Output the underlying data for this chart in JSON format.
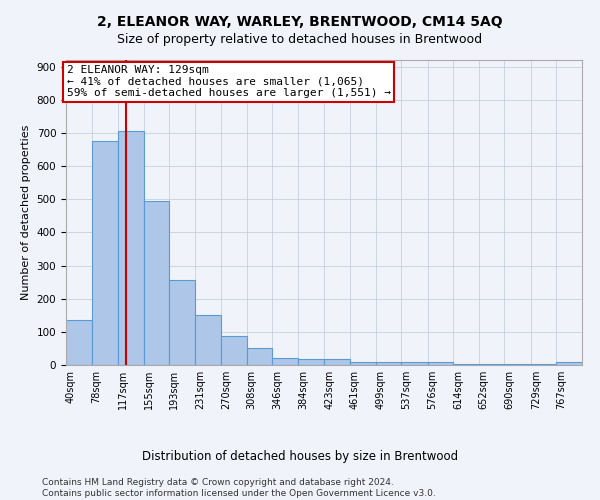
{
  "title": "2, ELEANOR WAY, WARLEY, BRENTWOOD, CM14 5AQ",
  "subtitle": "Size of property relative to detached houses in Brentwood",
  "xlabel": "Distribution of detached houses by size in Brentwood",
  "ylabel": "Number of detached properties",
  "bar_edges": [
    40,
    78,
    117,
    155,
    193,
    231,
    270,
    308,
    346,
    384,
    423,
    461,
    499,
    537,
    576,
    614,
    652,
    690,
    729,
    767,
    805
  ],
  "bar_heights": [
    135,
    675,
    705,
    495,
    255,
    150,
    88,
    50,
    22,
    18,
    17,
    10,
    10,
    10,
    8,
    4,
    2,
    2,
    2,
    9
  ],
  "bar_color": "#aec6e8",
  "bar_edge_color": "#5b9bd5",
  "vline_x": 129,
  "vline_color": "#cc0000",
  "annotation_line1": "2 ELEANOR WAY: 129sqm",
  "annotation_line2": "← 41% of detached houses are smaller (1,065)",
  "annotation_line3": "59% of semi-detached houses are larger (1,551) →",
  "annotation_box_color": "#ffffff",
  "annotation_box_edge_color": "#cc0000",
  "ylim": [
    0,
    920
  ],
  "yticks": [
    0,
    100,
    200,
    300,
    400,
    500,
    600,
    700,
    800,
    900
  ],
  "footer_line1": "Contains HM Land Registry data © Crown copyright and database right 2024.",
  "footer_line2": "Contains public sector information licensed under the Open Government Licence v3.0.",
  "bg_color": "#f0f4fa",
  "plot_bg_color": "#f0f4fa",
  "title_fontsize": 10,
  "subtitle_fontsize": 9,
  "tick_label_fontsize": 7,
  "ylabel_fontsize": 8,
  "xlabel_fontsize": 8.5,
  "annotation_fontsize": 8,
  "footer_fontsize": 6.5
}
